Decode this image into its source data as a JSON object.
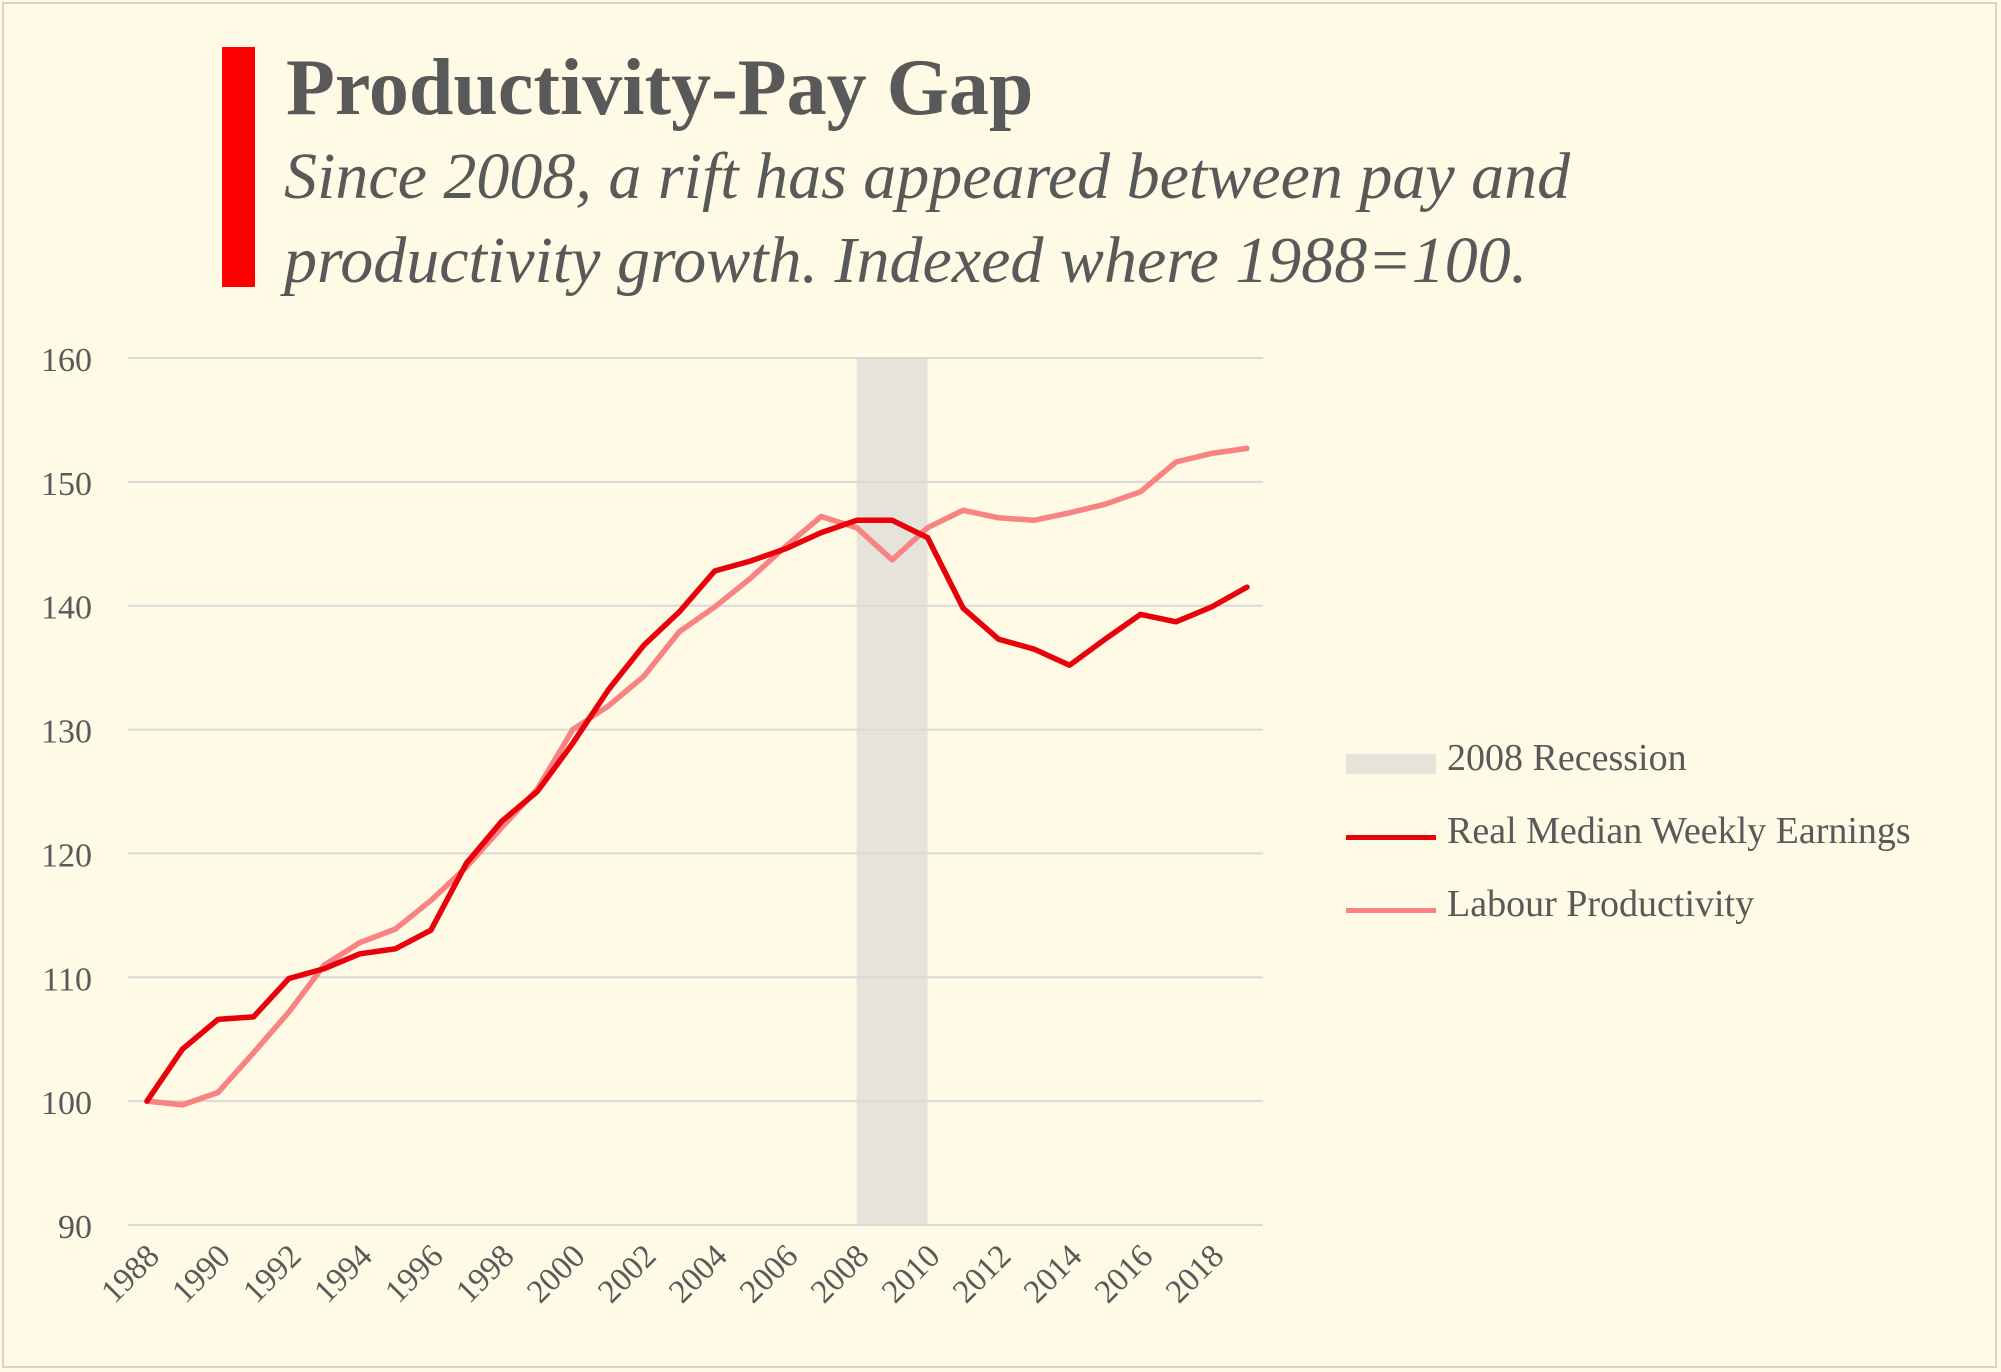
{
  "header": {
    "title": "Productivity-Pay Gap",
    "subtitle": "Since 2008, a rift has appeared between pay and productivity growth. Indexed where 1988=100."
  },
  "colors": {
    "background": "#fefae6",
    "accent": "#fe0000",
    "earnings": "#e8000b",
    "productivity": "#f98383",
    "recession": "#e6e4da",
    "grid": "#d9d9d9",
    "text": "#595959"
  },
  "legend": {
    "placement": "right",
    "items": [
      {
        "label": "2008 Recession",
        "kind": "band"
      },
      {
        "label": "Real Median Weekly Earnings",
        "kind": "line-earnings"
      },
      {
        "label": "Labour Productivity",
        "kind": "line-productivity"
      }
    ]
  },
  "chart_data": {
    "type": "line",
    "title": "Productivity-Pay Gap",
    "subtitle": "Since 2008, a rift has appeared between pay and productivity growth. Indexed where 1988=100.",
    "xlabel": "",
    "ylabel": "",
    "ylim": [
      90,
      160
    ],
    "yticks": [
      90,
      100,
      110,
      120,
      130,
      140,
      150,
      160
    ],
    "grid": true,
    "legend_position": "right",
    "xtick_labels": [
      "1988",
      "1990",
      "1992",
      "1994",
      "1996",
      "1998",
      "2000",
      "2002",
      "2004",
      "2006",
      "2008",
      "2010",
      "2012",
      "2014",
      "2016",
      "2018"
    ],
    "x": [
      1988,
      1989,
      1990,
      1991,
      1992,
      1993,
      1994,
      1995,
      1996,
      1997,
      1998,
      1999,
      2000,
      2001,
      2002,
      2003,
      2004,
      2005,
      2006,
      2007,
      2008,
      2009,
      2010,
      2011,
      2012,
      2013,
      2014,
      2015,
      2016,
      2017,
      2018,
      2019
    ],
    "recession": {
      "label": "2008 Recession",
      "start": 2008,
      "end": 2010
    },
    "series": [
      {
        "name": "Real Median Weekly Earnings",
        "values": [
          100.0,
          104.2,
          106.6,
          106.8,
          109.9,
          110.7,
          111.9,
          112.3,
          113.8,
          119.2,
          122.6,
          125.0,
          128.9,
          133.2,
          136.8,
          139.5,
          142.8,
          143.6,
          144.6,
          145.9,
          146.9,
          146.9,
          145.5,
          139.8,
          137.3,
          136.5,
          135.2,
          137.3,
          139.3,
          138.7,
          139.9,
          141.5
        ]
      },
      {
        "name": "Labour Productivity",
        "values": [
          100.0,
          99.7,
          100.7,
          103.9,
          107.2,
          111.0,
          112.8,
          113.9,
          116.2,
          118.9,
          122.1,
          125.2,
          130.0,
          131.9,
          134.3,
          137.9,
          139.9,
          142.2,
          144.8,
          147.2,
          146.3,
          143.7,
          146.3,
          147.7,
          147.1,
          146.9,
          147.5,
          148.2,
          149.2,
          151.6,
          152.3,
          152.7
        ]
      }
    ]
  }
}
